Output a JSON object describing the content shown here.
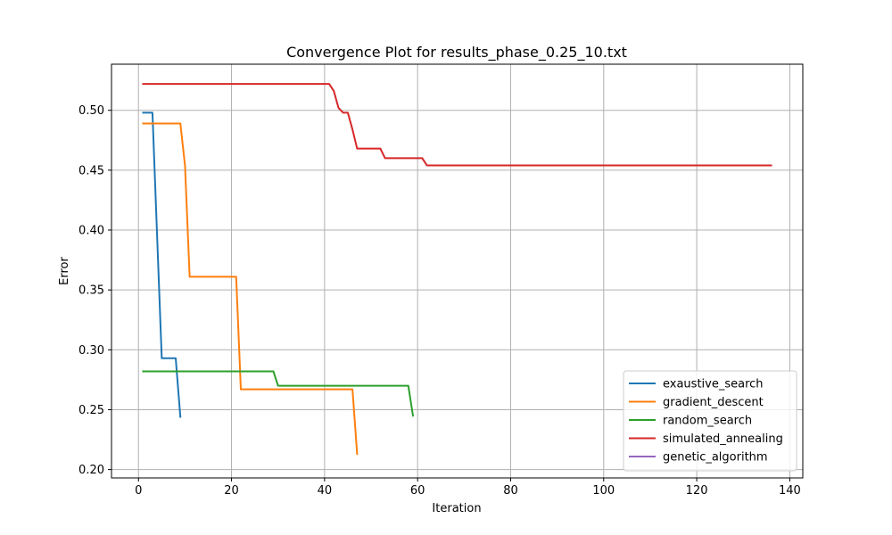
{
  "chart_data": {
    "type": "line",
    "title": "Convergence Plot for results_phase_0.25_10.txt",
    "xlabel": "Iteration",
    "ylabel": "Error",
    "xlim": [
      -5.8,
      142.8
    ],
    "ylim": [
      0.193,
      0.5385
    ],
    "xticks": [
      0,
      20,
      40,
      60,
      80,
      100,
      120,
      140
    ],
    "yticks": [
      0.2,
      0.25,
      0.3,
      0.35,
      0.4,
      0.45,
      0.5
    ],
    "xtick_labels": [
      "0",
      "20",
      "40",
      "60",
      "80",
      "100",
      "120",
      "140"
    ],
    "ytick_labels": [
      "0.20",
      "0.25",
      "0.30",
      "0.35",
      "0.40",
      "0.45",
      "0.50"
    ],
    "grid": true,
    "legend_position": "lower-right",
    "series": [
      {
        "name": "exaustive_search",
        "color": "#1f77b4",
        "x": [
          1,
          3,
          5,
          8,
          9
        ],
        "y": [
          0.498,
          0.498,
          0.293,
          0.293,
          0.244
        ]
      },
      {
        "name": "gradient_descent",
        "color": "#ff7f0e",
        "x": [
          1,
          9,
          10,
          11,
          21,
          22,
          46,
          47
        ],
        "y": [
          0.489,
          0.489,
          0.454,
          0.361,
          0.361,
          0.267,
          0.267,
          0.213
        ]
      },
      {
        "name": "random_search",
        "color": "#2ca02c",
        "x": [
          1,
          29,
          30,
          58,
          59
        ],
        "y": [
          0.282,
          0.282,
          0.27,
          0.27,
          0.245
        ]
      },
      {
        "name": "simulated_annealing",
        "color": "#d62728",
        "x": [
          1,
          41,
          42,
          43,
          44,
          45,
          46,
          47,
          52,
          53,
          61,
          62,
          136
        ],
        "y": [
          0.522,
          0.522,
          0.516,
          0.502,
          0.498,
          0.498,
          0.484,
          0.468,
          0.468,
          0.46,
          0.46,
          0.454,
          0.454
        ]
      },
      {
        "name": "genetic_algorithm",
        "color": "#9467bd",
        "x": [],
        "y": []
      }
    ]
  }
}
